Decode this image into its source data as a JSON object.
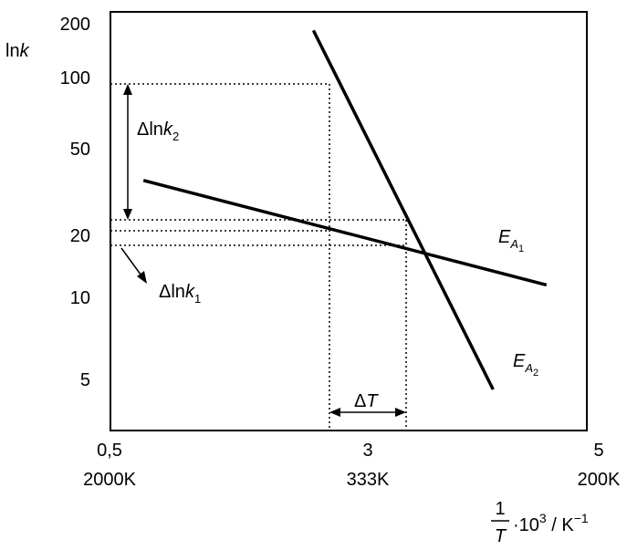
{
  "chart_data": {
    "type": "line",
    "ylabel_prefix": "ln",
    "ylabel_var": "k",
    "yscale": "log",
    "y_ticks": [
      "200",
      "100",
      "50",
      "20",
      "10",
      "5"
    ],
    "x_ticks": [
      {
        "value": "0,5",
        "temp": "2000K"
      },
      {
        "value": "3",
        "temp": "333K"
      },
      {
        "value": "5",
        "temp": "200K"
      }
    ],
    "xlabel": {
      "frac_num": "1",
      "frac_den": "T",
      "mult": "·10",
      "exp": "3",
      "unit": " / K",
      "unit_exp": "−1"
    },
    "series": [
      {
        "name_main": "E",
        "name_sub": "A",
        "name_subsub": "1",
        "x": [
          0.85,
          5.0
        ],
        "y": [
          34.5,
          11.6
        ]
      },
      {
        "name_main": "E",
        "name_sub": "A",
        "name_subsub": "2",
        "x": [
          2.6,
          4.45
        ],
        "y": [
          165,
          3.9
        ]
      }
    ],
    "annotations": {
      "delta_lnk2": {
        "delta": "Δ",
        "ln": "ln",
        "var": "k",
        "sub": "2"
      },
      "delta_lnk1": {
        "delta": "Δ",
        "ln": "ln",
        "var": "k",
        "sub": "1"
      },
      "delta_T": {
        "delta": "Δ",
        "var": "T"
      }
    },
    "grid": false
  }
}
